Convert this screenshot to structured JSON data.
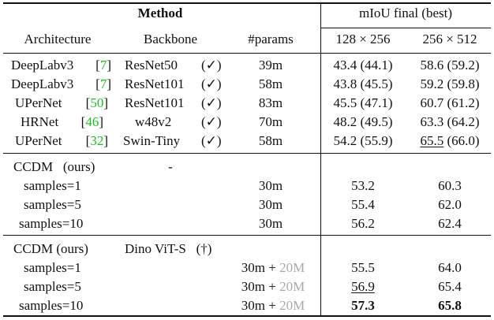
{
  "header": {
    "method": "Method",
    "miou": "mIoU final (best)",
    "cols": [
      "Architecture",
      "Backbone",
      "#params",
      "128 × 256",
      "256 × 512"
    ]
  },
  "baselines": [
    {
      "arch": "DeepLabv3",
      "ref": "7",
      "backbone": "ResNet50",
      "pre": "(✓)",
      "params": "39m",
      "r128": "43.4 (44.1)",
      "r256": "58.6 (59.2)"
    },
    {
      "arch": "DeepLabv3",
      "ref": "7",
      "backbone": "ResNet101",
      "pre": "(✓)",
      "params": "58m",
      "r128": "43.8 (45.5)",
      "r256": "59.2 (59.8)"
    },
    {
      "arch": "UPerNet",
      "ref": "50",
      "backbone": "ResNet101",
      "pre": "(✓)",
      "params": "83m",
      "r128": "45.5 (47.1)",
      "r256": "60.7 (61.2)"
    },
    {
      "arch": "HRNet",
      "ref": "46",
      "backbone": "w48v2",
      "pre": "(✓)",
      "params": "70m",
      "r128": "48.2 (49.5)",
      "r256": "63.3 (64.2)"
    },
    {
      "arch": "UPerNet",
      "ref": "32",
      "backbone": "Swin-Tiny",
      "pre": "(✓)",
      "params": "58m",
      "r128": "54.2 (55.9)",
      "r256_u": "65.5",
      "r256_rest": " (66.0)"
    }
  ],
  "ccdm1": {
    "title": "CCDM",
    "ours": "(ours)",
    "backbone": "-",
    "rows": [
      {
        "label": "samples=1",
        "params": "30m",
        "r128": "53.2",
        "r256": "60.3"
      },
      {
        "label": "samples=5",
        "params": "30m",
        "r128": "55.4",
        "r256": "62.0"
      },
      {
        "label": "samples=10",
        "params": "30m",
        "r128": "56.2",
        "r256": "62.4"
      }
    ]
  },
  "ccdm2": {
    "title": "CCDM (ours)",
    "backbone": "Dino ViT-S",
    "dagger": "(†)",
    "rows": [
      {
        "label": "samples=1",
        "params": "30m",
        "plus": " + ",
        "extra": "20M",
        "r128": "55.5",
        "r256": "64.0"
      },
      {
        "label": "samples=5",
        "params": "30m",
        "plus": " + ",
        "extra": "20M",
        "r128": "56.9",
        "r256": "65.4"
      },
      {
        "label": "samples=10",
        "params": "30m",
        "plus": " + ",
        "extra": "20M",
        "r128": "57.3",
        "r256": "65.8"
      }
    ]
  },
  "colors": {
    "citation": "#22bb22",
    "extra_params": "#a8a8a8"
  }
}
